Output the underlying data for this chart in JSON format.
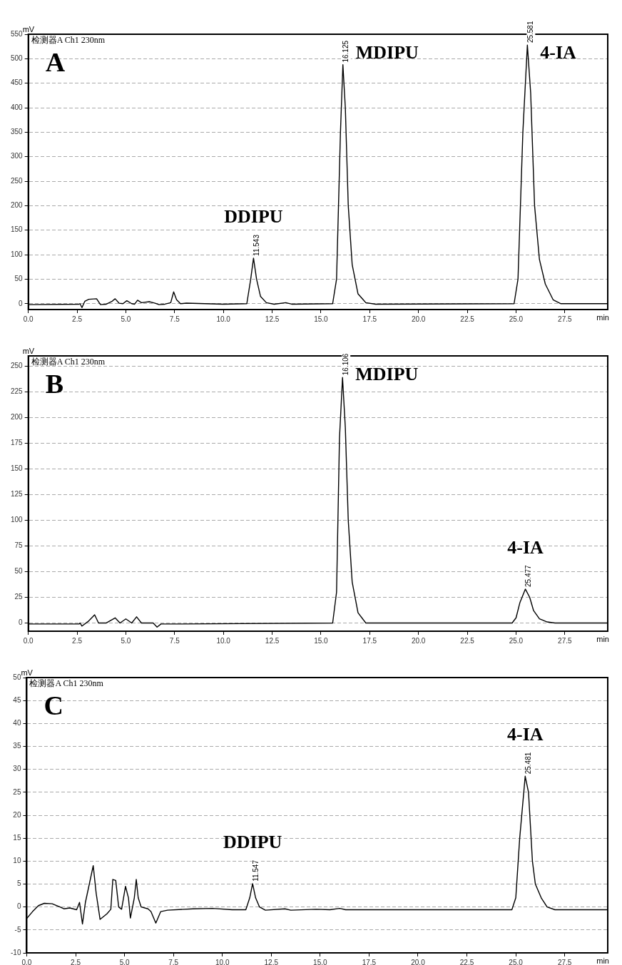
{
  "chart_data": [
    {
      "type": "line",
      "title": "A",
      "subtitle": "检测器A Ch1 230nm",
      "xlabel": "min",
      "ylabel": "mV",
      "xlim": [
        0,
        29.7
      ],
      "xticks": [
        {
          "value": 0,
          "label": "0.0"
        },
        {
          "value": 2.5,
          "label": "2.5"
        },
        {
          "value": 5,
          "label": "5.0"
        },
        {
          "value": 7.5,
          "label": "7.5"
        },
        {
          "value": 10,
          "label": "10.0"
        },
        {
          "value": 12.5,
          "label": "12.5"
        },
        {
          "value": 15,
          "label": "15.0"
        },
        {
          "value": 17.5,
          "label": "17.5"
        },
        {
          "value": 20,
          "label": "20.0"
        },
        {
          "value": 22.5,
          "label": "22.5"
        },
        {
          "value": 25,
          "label": "25.0"
        },
        {
          "value": 27.5,
          "label": "27.5"
        }
      ],
      "ylim": [
        -12,
        550
      ],
      "yticks": [
        0,
        50,
        100,
        150,
        200,
        250,
        300,
        350,
        400,
        450,
        500,
        550
      ],
      "grid": "y",
      "marker": "none",
      "line_style": "solid",
      "x": [
        0,
        2.6,
        2.65,
        2.75,
        2.9,
        3.1,
        3.5,
        3.7,
        4.0,
        4.3,
        4.45,
        4.65,
        4.85,
        5.05,
        5.3,
        5.45,
        5.6,
        5.8,
        6.2,
        6.5,
        6.7,
        7.0,
        7.3,
        7.45,
        7.6,
        7.8,
        8.1,
        10.0,
        11.2,
        11.4,
        11.543,
        11.7,
        11.9,
        12.2,
        12.6,
        13.2,
        13.5,
        15.6,
        15.8,
        16.0,
        16.125,
        16.25,
        16.4,
        16.6,
        16.9,
        17.3,
        17.8,
        24.9,
        25.1,
        25.35,
        25.581,
        25.75,
        25.95,
        26.2,
        26.5,
        26.9,
        27.3,
        29.7
      ],
      "series": [
        {
          "color": "#000000",
          "values": [
            -2,
            -1,
            0,
            -8,
            5,
            9,
            10,
            -2,
            -1,
            5,
            10,
            1,
            0,
            6,
            0,
            -1,
            7,
            2,
            4,
            1,
            -2,
            -1,
            2,
            24,
            8,
            0,
            1,
            -1,
            0,
            50,
            93,
            50,
            15,
            2,
            -1,
            2,
            -1,
            0,
            50,
            350,
            488,
            400,
            200,
            80,
            20,
            2,
            -1,
            0,
            50,
            350,
            528,
            430,
            200,
            90,
            40,
            8,
            0,
            0
          ]
        }
      ],
      "annotations": [
        {
          "text": "11.543",
          "x": 11.543,
          "y": 93
        },
        {
          "text": "DDIPU",
          "x": 11.543,
          "y": 93
        },
        {
          "text": "16.125",
          "x": 16.125,
          "y": 488
        },
        {
          "text": "MDIPU",
          "x": 16.125,
          "y": 488
        },
        {
          "text": "25.581",
          "x": 25.581,
          "y": 528
        },
        {
          "text": "4-IA",
          "x": 25.581,
          "y": 528
        }
      ]
    },
    {
      "type": "line",
      "title": "B",
      "subtitle": "检测器A Ch1 230nm",
      "xlabel": "min",
      "ylabel": "mV",
      "xlim": [
        0,
        29.7
      ],
      "xticks": [
        {
          "value": 0,
          "label": "0.0"
        },
        {
          "value": 2.5,
          "label": "2.5"
        },
        {
          "value": 5,
          "label": "5.0"
        },
        {
          "value": 7.5,
          "label": "7.5"
        },
        {
          "value": 10,
          "label": "10.0"
        },
        {
          "value": 12.5,
          "label": "12.5"
        },
        {
          "value": 15,
          "label": "15.0"
        },
        {
          "value": 17.5,
          "label": "17.5"
        },
        {
          "value": 20,
          "label": "20.0"
        },
        {
          "value": 22.5,
          "label": "22.5"
        },
        {
          "value": 25,
          "label": "25.0"
        },
        {
          "value": 27.5,
          "label": "27.5"
        }
      ],
      "ylim": [
        -8,
        260
      ],
      "yticks": [
        0,
        25,
        50,
        75,
        100,
        125,
        150,
        175,
        200,
        225,
        250
      ],
      "grid": "y",
      "marker": "none",
      "line_style": "solid",
      "x": [
        0,
        2.6,
        2.65,
        2.75,
        3.1,
        3.4,
        3.6,
        4.0,
        4.45,
        4.7,
        5.0,
        5.3,
        5.55,
        5.8,
        6.4,
        6.6,
        6.8,
        7.5,
        15.6,
        15.8,
        15.95,
        16.106,
        16.25,
        16.4,
        16.6,
        16.9,
        17.3,
        24.8,
        25.0,
        25.2,
        25.477,
        25.7,
        25.9,
        26.2,
        26.6,
        27.0,
        29.7
      ],
      "series": [
        {
          "color": "#000000",
          "values": [
            -1,
            -1,
            0,
            -3,
            2,
            8,
            0,
            0,
            5,
            0,
            4,
            0,
            6,
            0,
            0,
            -4,
            -1,
            -1,
            0,
            30,
            180,
            239,
            190,
            100,
            40,
            10,
            0,
            0,
            5,
            20,
            33,
            25,
            12,
            4,
            1,
            0,
            0
          ]
        }
      ],
      "annotations": [
        {
          "text": "16.106",
          "x": 16.106,
          "y": 239
        },
        {
          "text": "MDIPU",
          "x": 16.106,
          "y": 239
        },
        {
          "text": "25.477",
          "x": 25.477,
          "y": 33
        },
        {
          "text": "4-IA",
          "x": 25.477,
          "y": 33
        }
      ]
    },
    {
      "type": "line",
      "title": "C",
      "subtitle": "检测器A Ch1 230nm",
      "xlabel": "min",
      "ylabel": "mV",
      "xlim": [
        0,
        29.7
      ],
      "xticks": [
        {
          "value": 0,
          "label": "0.0"
        },
        {
          "value": 2.5,
          "label": "2.5"
        },
        {
          "value": 5,
          "label": "5.0"
        },
        {
          "value": 7.5,
          "label": "7.5"
        },
        {
          "value": 10,
          "label": "10.0"
        },
        {
          "value": 12.5,
          "label": "12.5"
        },
        {
          "value": 15,
          "label": "15.0"
        },
        {
          "value": 17.5,
          "label": "17.5"
        },
        {
          "value": 20,
          "label": "20.0"
        },
        {
          "value": 22.5,
          "label": "22.5"
        },
        {
          "value": 25,
          "label": "25.0"
        },
        {
          "value": 27.5,
          "label": "27.5"
        }
      ],
      "ylim": [
        -10,
        50
      ],
      "yticks": [
        -10,
        -5,
        0,
        5,
        10,
        15,
        20,
        25,
        30,
        35,
        40,
        45,
        50
      ],
      "grid": "y",
      "marker": "none",
      "line_style": "solid",
      "x": [
        0,
        0.3,
        0.6,
        0.9,
        1.3,
        1.7,
        1.9,
        2.2,
        2.55,
        2.7,
        2.85,
        3.0,
        3.2,
        3.4,
        3.55,
        3.75,
        4.1,
        4.3,
        4.4,
        4.55,
        4.7,
        4.85,
        5.05,
        5.2,
        5.3,
        5.5,
        5.6,
        5.7,
        5.85,
        6.2,
        6.35,
        6.6,
        6.85,
        7.2,
        8.5,
        9.5,
        10.5,
        11.2,
        11.4,
        11.547,
        11.7,
        11.9,
        12.2,
        13.2,
        13.5,
        14.8,
        15.5,
        16.0,
        16.3,
        24.8,
        25.0,
        25.2,
        25.481,
        25.65,
        25.85,
        26.0,
        26.3,
        26.6,
        27.0,
        29.7
      ],
      "series": [
        {
          "color": "#000000",
          "values": [
            -2.5,
            -1,
            0.3,
            0.8,
            0.7,
            0,
            -0.4,
            -0.2,
            -0.6,
            1,
            -3.7,
            1,
            5,
            9,
            3,
            -2.7,
            -1.5,
            -0.5,
            6,
            5.8,
            0,
            -0.5,
            4.5,
            2,
            -2.4,
            2,
            6,
            2,
            0,
            -0.4,
            -1,
            -3.5,
            -1,
            -0.7,
            -0.4,
            -0.3,
            -0.6,
            -0.6,
            2,
            5.1,
            2,
            0,
            -0.7,
            -0.4,
            -0.7,
            -0.5,
            -0.6,
            -0.3,
            -0.6,
            -0.6,
            2,
            15,
            28.5,
            25,
            10,
            5,
            2,
            0,
            -0.6,
            -0.6
          ]
        }
      ],
      "annotations": [
        {
          "text": "11.547",
          "x": 11.547,
          "y": 5.1
        },
        {
          "text": "DDIPU",
          "x": 11.547,
          "y": 5.1
        },
        {
          "text": "25.481",
          "x": 25.481,
          "y": 28.5
        },
        {
          "text": "4-IA",
          "x": 25.481,
          "y": 28.5
        }
      ]
    }
  ]
}
